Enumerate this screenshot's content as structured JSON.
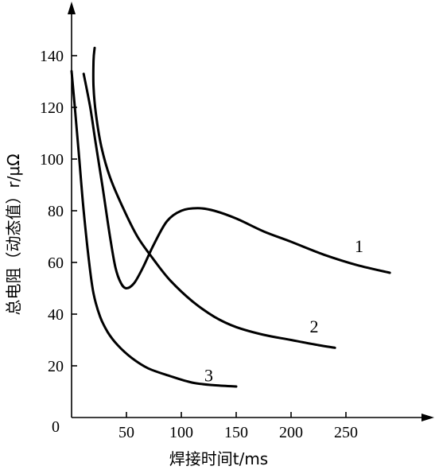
{
  "chart_data": {
    "type": "line",
    "title": "",
    "xlabel": "焊接时间t/ms",
    "ylabel": "总电阻（动态值）r/μΩ",
    "origin_label": "0",
    "xlim": [
      0,
      330
    ],
    "ylim": [
      0,
      145
    ],
    "x_ticks": [
      50,
      100,
      150,
      200,
      250
    ],
    "y_ticks": [
      20,
      40,
      60,
      80,
      100,
      120,
      140
    ],
    "grid": false,
    "legend": "none",
    "series": [
      {
        "name": "1",
        "points": [
          [
            11,
            133
          ],
          [
            17,
            120
          ],
          [
            22,
            106
          ],
          [
            28,
            90
          ],
          [
            35,
            70
          ],
          [
            40,
            58
          ],
          [
            45,
            52
          ],
          [
            50,
            50
          ],
          [
            57,
            52
          ],
          [
            65,
            58
          ],
          [
            75,
            67
          ],
          [
            87,
            76
          ],
          [
            100,
            80
          ],
          [
            115,
            81
          ],
          [
            130,
            80
          ],
          [
            150,
            77
          ],
          [
            175,
            72
          ],
          [
            200,
            68
          ],
          [
            230,
            63
          ],
          [
            260,
            59
          ],
          [
            290,
            56
          ]
        ]
      },
      {
        "name": "2",
        "points": [
          [
            21,
            143
          ],
          [
            20,
            138
          ],
          [
            20,
            128
          ],
          [
            22,
            118
          ],
          [
            27,
            105
          ],
          [
            35,
            93
          ],
          [
            47,
            81
          ],
          [
            60,
            70
          ],
          [
            75,
            61
          ],
          [
            90,
            53
          ],
          [
            110,
            45
          ],
          [
            130,
            39
          ],
          [
            150,
            35
          ],
          [
            175,
            32
          ],
          [
            200,
            30
          ],
          [
            225,
            28
          ],
          [
            240,
            27
          ]
        ]
      },
      {
        "name": "3",
        "points": [
          [
            0,
            134
          ],
          [
            3,
            120
          ],
          [
            7,
            100
          ],
          [
            11,
            80
          ],
          [
            16,
            60
          ],
          [
            20,
            48
          ],
          [
            26,
            39
          ],
          [
            33,
            33
          ],
          [
            42,
            28
          ],
          [
            55,
            23
          ],
          [
            70,
            19
          ],
          [
            90,
            16
          ],
          [
            110,
            13.5
          ],
          [
            130,
            12.5
          ],
          [
            150,
            12
          ]
        ]
      }
    ],
    "curve_labels": [
      {
        "text": "1",
        "x": 262,
        "y": 64
      },
      {
        "text": "2",
        "x": 221,
        "y": 33
      },
      {
        "text": "3",
        "x": 125,
        "y": 14
      }
    ]
  }
}
